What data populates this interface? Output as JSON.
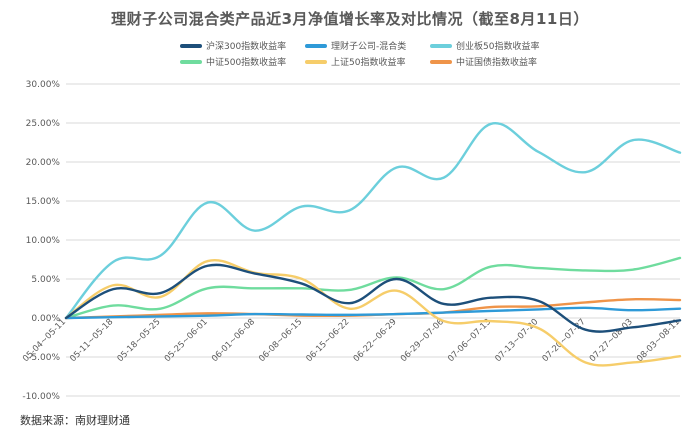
{
  "chart_data": {
    "type": "line",
    "title": "理财子公司混合类产品近3月净值增长率及对比情况（截至8月11日）",
    "source": "数据来源：南财理财通",
    "ylim": [
      -10,
      30
    ],
    "ytick_step": 5,
    "ytick_format": "%.2f%%",
    "grid": "horizontal",
    "legend_position": "top",
    "categories": [
      "05-04~05-11",
      "05-11~05-18",
      "05-18~05-25",
      "05-25~06-01",
      "06-01~06-08",
      "06-08~06-15",
      "06-15~06-22",
      "06-22~06-29",
      "06-29~07-06",
      "07-06~07-13",
      "07-13~07-20",
      "07-20~07-27",
      "07-27~08-03",
      "08-03~08-11"
    ],
    "series": [
      {
        "name": "沪深300指数收益率",
        "color": "#1d4f7a",
        "values": [
          0,
          3.7,
          3.2,
          6.7,
          5.7,
          4.4,
          1.9,
          5.0,
          1.8,
          2.6,
          2.2,
          -1.5,
          -1.2,
          -0.3
        ]
      },
      {
        "name": "理财子公司-混合类",
        "color": "#2e9ad8",
        "values": [
          0,
          0.1,
          0.2,
          0.3,
          0.5,
          0.45,
          0.4,
          0.5,
          0.7,
          0.9,
          1.1,
          1.3,
          1.0,
          1.2
        ]
      },
      {
        "name": "创业板50指数收益率",
        "color": "#6ccfdc",
        "values": [
          0,
          7.2,
          8.0,
          14.8,
          11.2,
          14.3,
          13.8,
          19.3,
          18.0,
          24.9,
          21.3,
          18.7,
          22.8,
          21.2
        ]
      },
      {
        "name": "中证500指数收益率",
        "color": "#6fdc9e",
        "values": [
          0,
          1.6,
          1.2,
          3.8,
          3.8,
          3.8,
          3.6,
          5.2,
          3.7,
          6.6,
          6.4,
          6.1,
          6.2,
          7.7
        ]
      },
      {
        "name": "上证50指数收益率",
        "color": "#f6cd6a",
        "values": [
          0,
          4.2,
          2.7,
          7.3,
          5.8,
          5.0,
          1.2,
          3.5,
          -0.4,
          -0.4,
          -1.3,
          -5.7,
          -5.7,
          -4.9
        ]
      },
      {
        "name": "中证国债指数收益率",
        "color": "#ef9449",
        "values": [
          0,
          0.2,
          0.4,
          0.6,
          0.5,
          0.3,
          0.3,
          0.5,
          0.7,
          1.4,
          1.5,
          2.0,
          2.4,
          2.3
        ]
      }
    ]
  }
}
